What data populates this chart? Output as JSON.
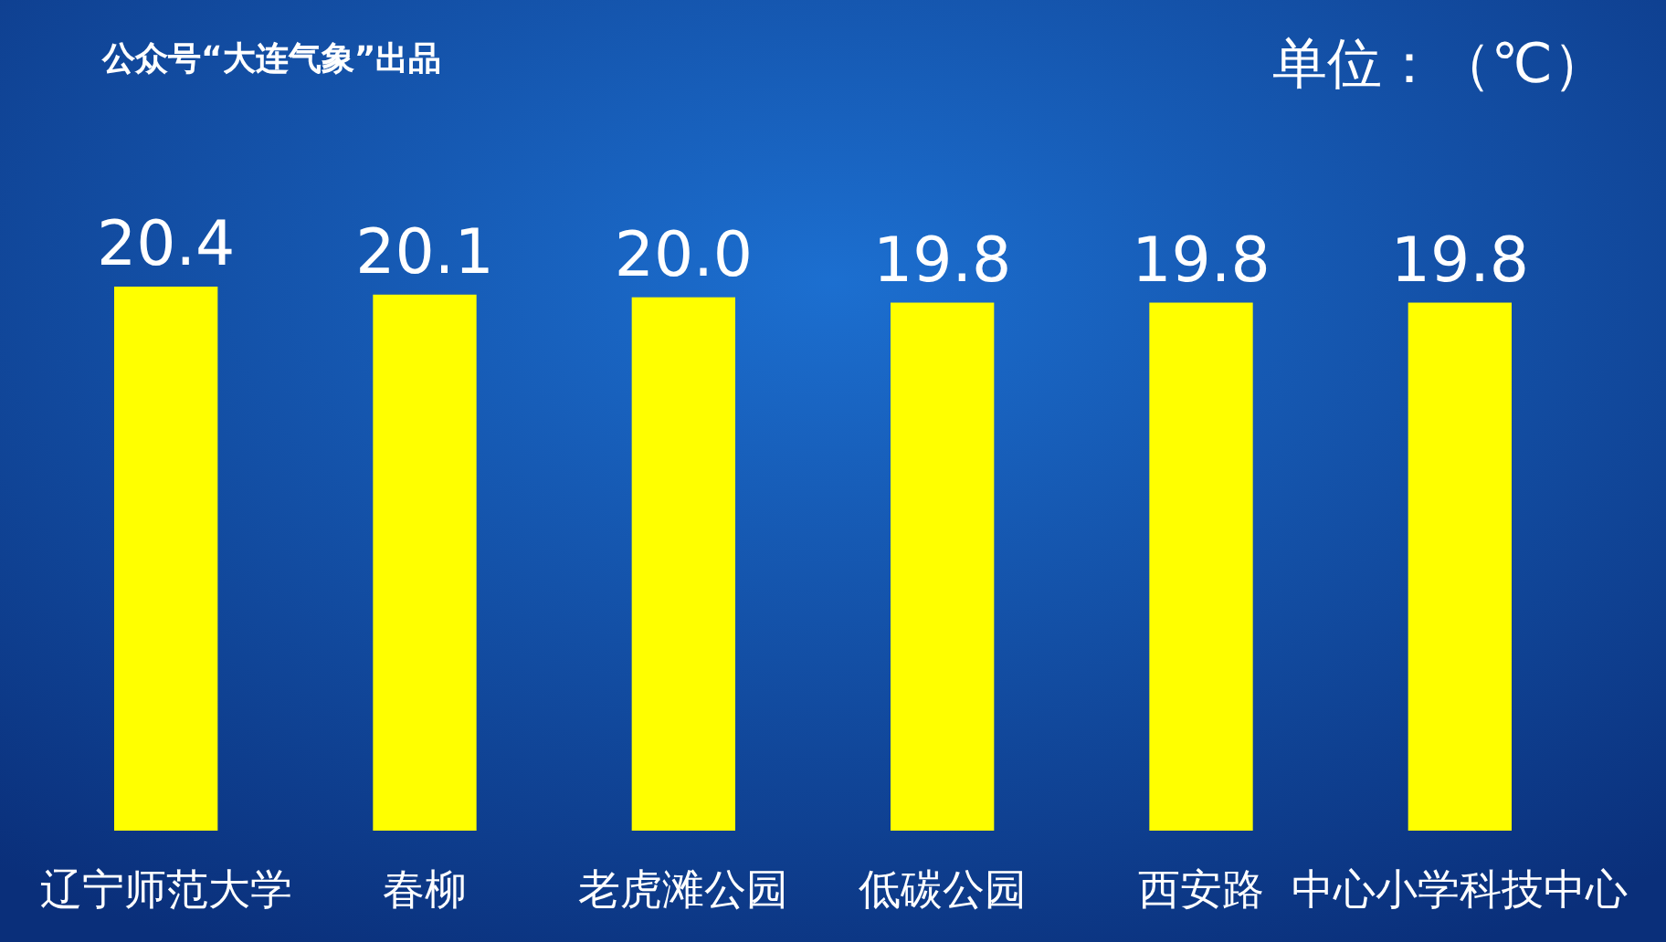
{
  "chart_data": {
    "type": "bar",
    "title": "公众号“大连气象”出品",
    "ylabel": "单位：（℃）",
    "categories": [
      "辽宁师范大学",
      "春柳",
      "老虎滩公园",
      "低碳公园",
      "西安路",
      "中心小学科技中心"
    ],
    "values": [
      20.4,
      20.1,
      20.0,
      19.8,
      19.8,
      19.8
    ],
    "value_labels": [
      "20.4",
      "20.1",
      "20.0",
      "19.8",
      "19.8",
      "19.8"
    ],
    "color": "#ffff00",
    "tick_labels": "x"
  }
}
